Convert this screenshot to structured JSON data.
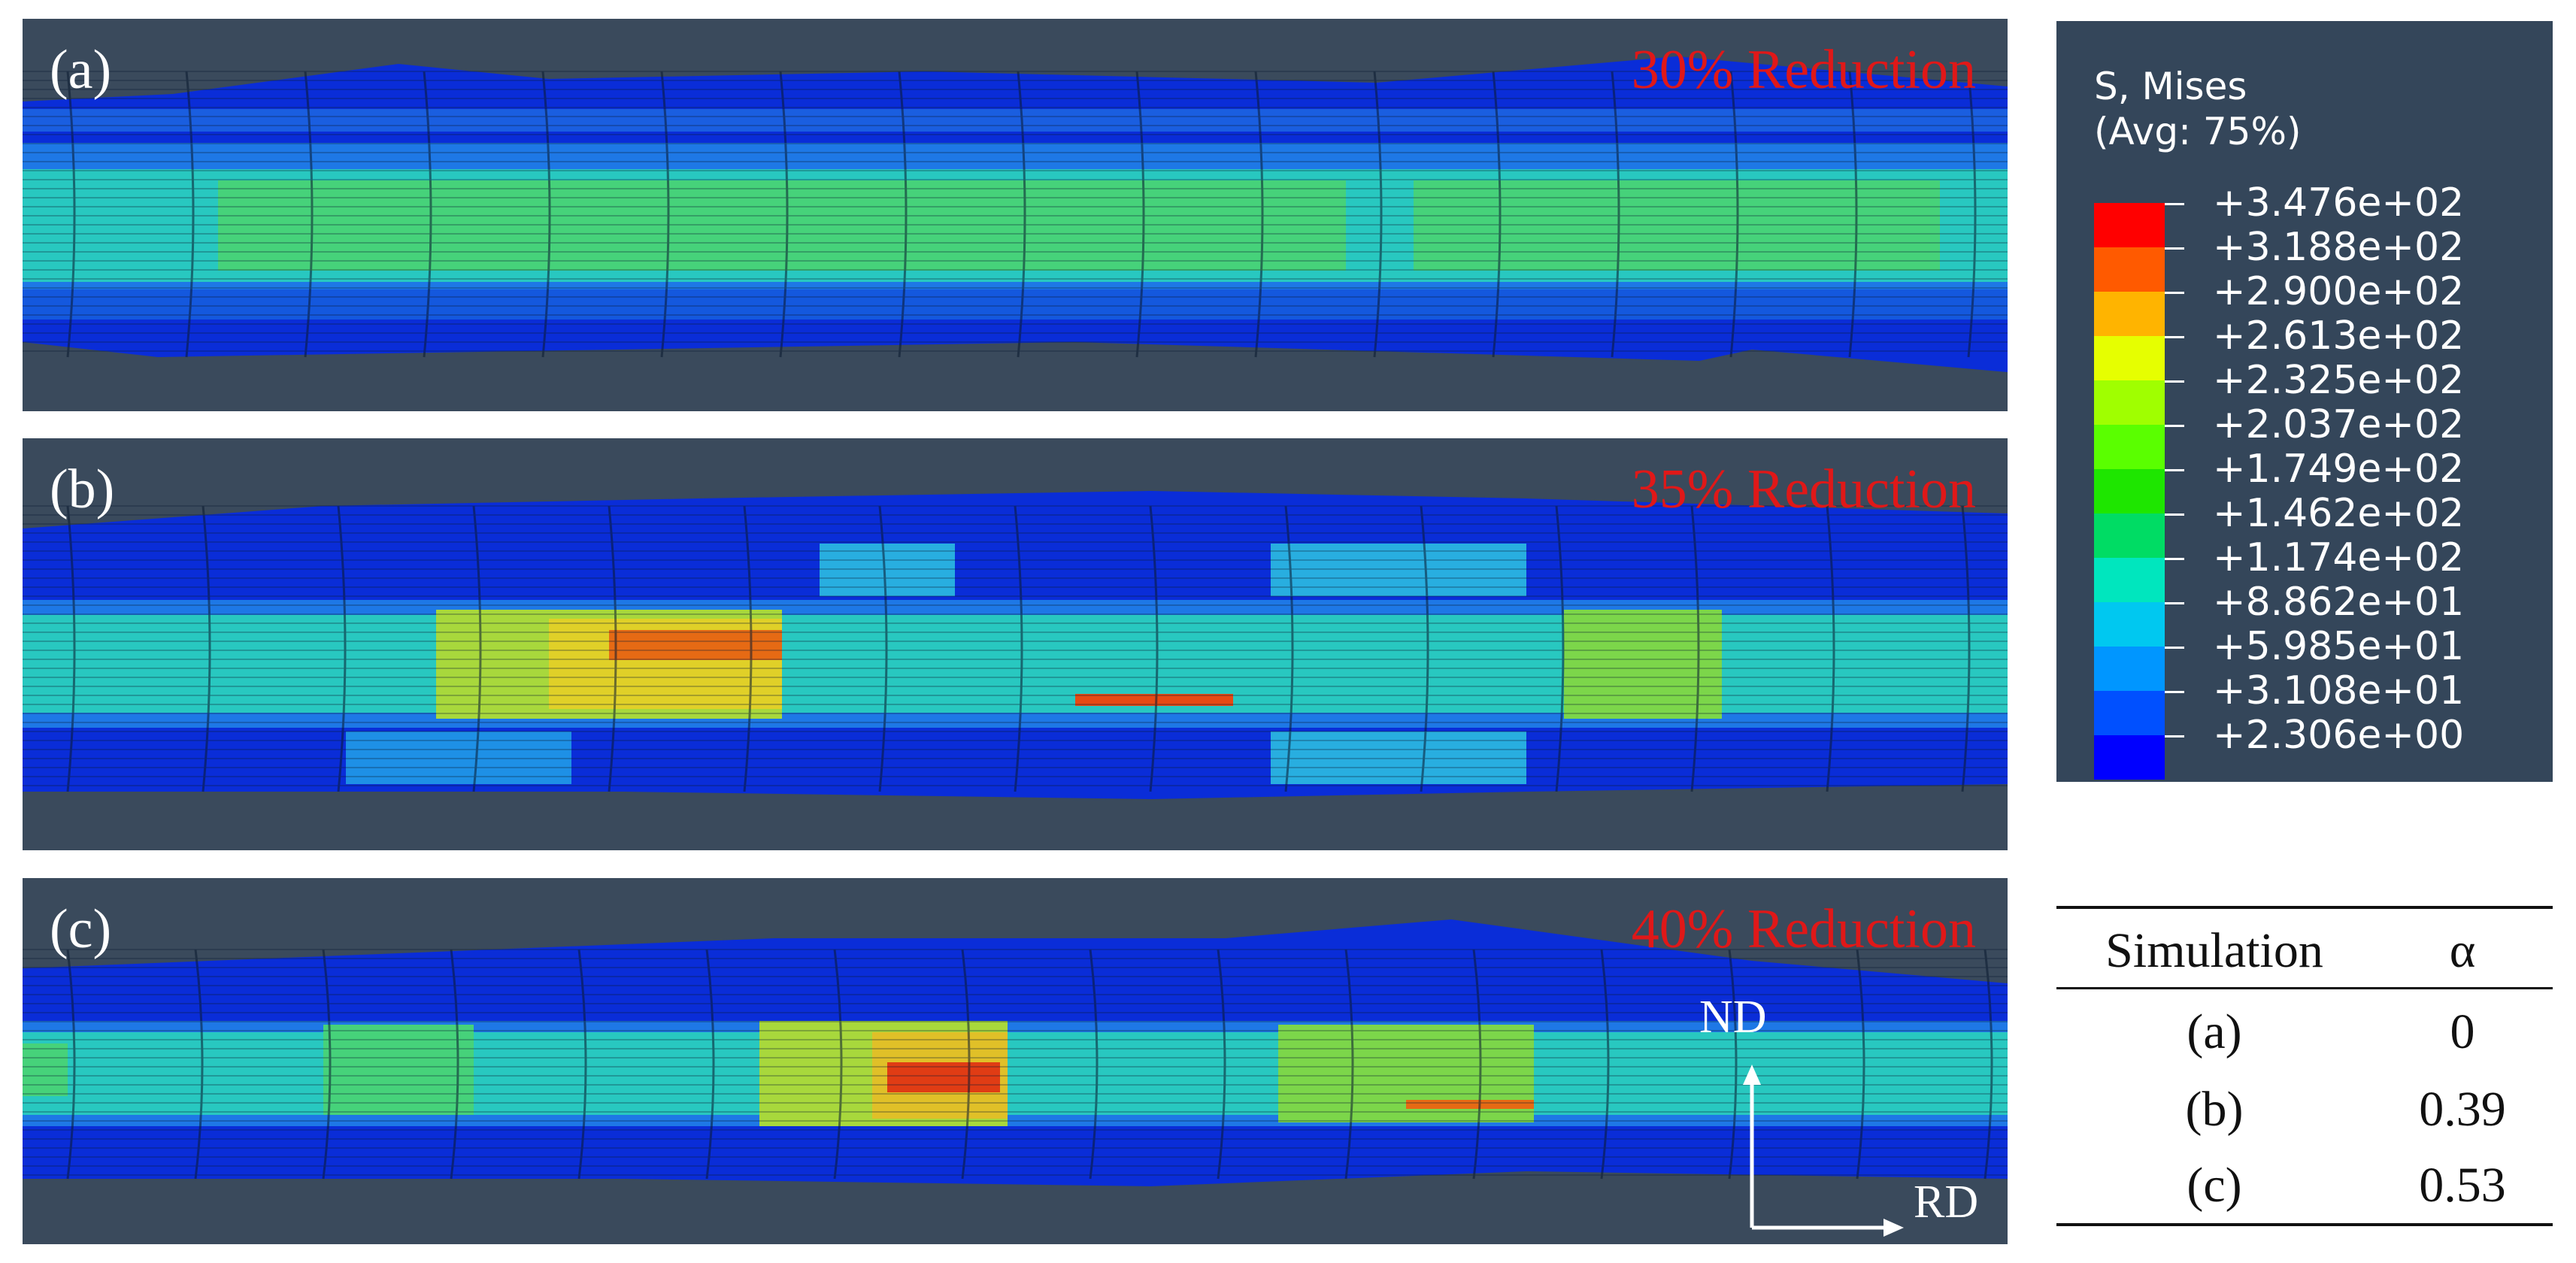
{
  "panels": [
    {
      "label": "(a)",
      "title": "30% Reduction"
    },
    {
      "label": "(b)",
      "title": "35% Reduction"
    },
    {
      "label": "(c)",
      "title": "40% Reduction"
    }
  ],
  "legend": {
    "title_line1": "S, Mises",
    "title_line2": "(Avg: 75%)",
    "values": [
      "+3.476e+02",
      "+3.188e+02",
      "+2.900e+02",
      "+2.613e+02",
      "+2.325e+02",
      "+2.037e+02",
      "+1.749e+02",
      "+1.462e+02",
      "+1.174e+02",
      "+8.862e+01",
      "+5.985e+01",
      "+3.108e+01",
      "+2.306e+00"
    ],
    "colors": [
      "#ff0000",
      "#ff5a00",
      "#ffb400",
      "#e6ff00",
      "#a0ff00",
      "#5aff00",
      "#1ee600",
      "#00dc64",
      "#00e6be",
      "#00c8f0",
      "#0096ff",
      "#0050ff",
      "#0000ff"
    ]
  },
  "axes": {
    "vertical": "ND",
    "horizontal": "RD"
  },
  "table": {
    "headers": [
      "Simulation",
      "α"
    ],
    "rows": [
      {
        "sim": "(a)",
        "alpha": "0"
      },
      {
        "sim": "(b)",
        "alpha": "0.39"
      },
      {
        "sim": "(c)",
        "alpha": "0.53"
      }
    ]
  }
}
